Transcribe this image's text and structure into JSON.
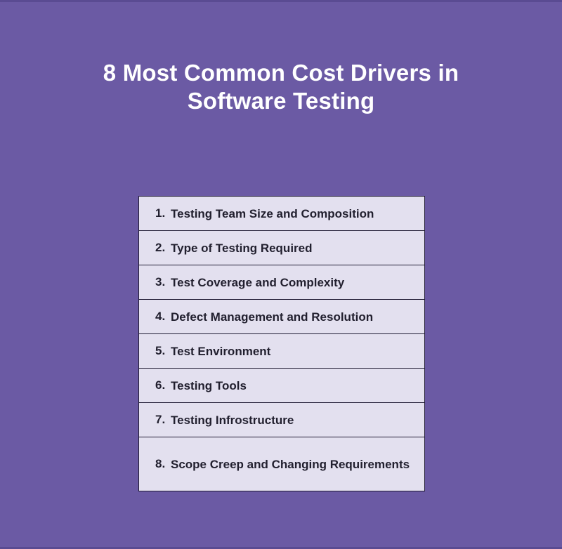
{
  "background_color": "#6b5aa4",
  "edge_color": "#5a4b92",
  "title": {
    "text": "8 Most Common Cost Drivers in Software Testing",
    "lines": [
      "8 Most Common Cost Drivers in",
      "Software Testing"
    ],
    "color": "#ffffff"
  },
  "table": {
    "fill_color": "#e3e0ef",
    "border_color": "#211d35",
    "text_color": "#211f2e",
    "items": [
      {
        "number": "1.",
        "label": "Testing Team Size and Composition"
      },
      {
        "number": "2.",
        "label": "Type of Testing Required"
      },
      {
        "number": "3.",
        "label": "Test Coverage and Complexity"
      },
      {
        "number": "4.",
        "label": "Defect Management and Resolution"
      },
      {
        "number": "5.",
        "label": "Test Environment"
      },
      {
        "number": "6.",
        "label": "Testing Tools"
      },
      {
        "number": "7.",
        "label": "Testing Infrostructure"
      },
      {
        "number": "8.",
        "label": "Scope Creep and Changing Requirements"
      }
    ]
  }
}
